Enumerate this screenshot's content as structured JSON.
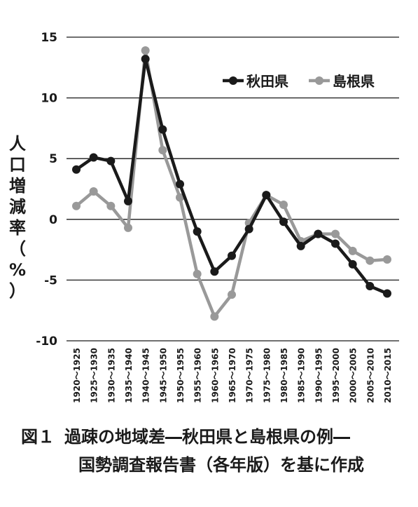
{
  "chart_data": {
    "type": "line",
    "title": "",
    "ylabel": "人口増減率（%）",
    "xlabel": "",
    "ylim": [
      -10,
      15
    ],
    "yticks": [
      15,
      10,
      5,
      0,
      -5,
      -10
    ],
    "grid": true,
    "legend": "top-right",
    "categories": [
      "1920～1925",
      "1925～1930",
      "1930～1935",
      "1935～1940",
      "1940～1945",
      "1945～1950",
      "1950～1955",
      "1955～1960",
      "1960～1965",
      "1965～1970",
      "1970～1975",
      "1975～1980",
      "1980～1985",
      "1985～1990",
      "1990～1995",
      "1995～2000",
      "2000～2005",
      "2005～2010",
      "2010～2015"
    ],
    "series": [
      {
        "name": "秋田県",
        "color": "#1a1a1a",
        "values": [
          4.1,
          5.1,
          4.8,
          1.5,
          13.2,
          7.4,
          2.9,
          -1.0,
          -4.3,
          -3.0,
          -0.8,
          2.0,
          -0.2,
          -2.2,
          -1.2,
          -2.0,
          -3.7,
          -5.5,
          -6.1
        ]
      },
      {
        "name": "島根県",
        "color": "#999999",
        "values": [
          1.1,
          2.3,
          1.1,
          -0.7,
          13.9,
          5.7,
          1.8,
          -4.5,
          -8.0,
          -6.2,
          -0.3,
          2.0,
          1.2,
          -1.8,
          -1.2,
          -1.2,
          -2.6,
          -3.4,
          -3.3
        ]
      }
    ]
  },
  "caption": {
    "fig_num": "図１",
    "line1": "過疎の地域差―秋田県と島根県の例―",
    "line2": "国勢調査報告書（各年版）を基に作成"
  }
}
